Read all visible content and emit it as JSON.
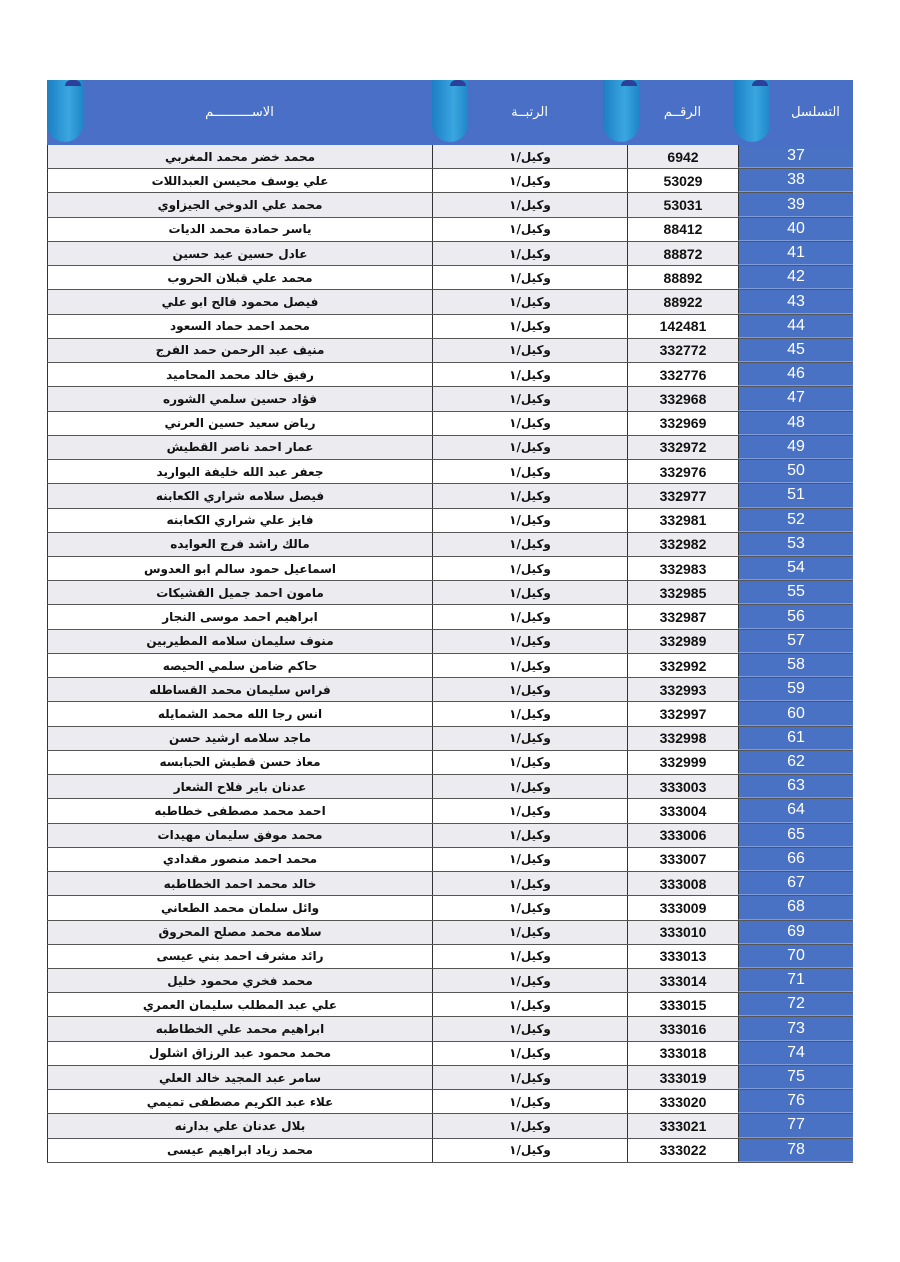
{
  "header": {
    "name": "الاســــــــــم",
    "rank": "الرتبــة",
    "number": "الرقــم",
    "serial": "التسلسل"
  },
  "colors": {
    "header_bg": "#4a6fc6",
    "serial_bg": "#4a72c4",
    "odd_row_bg": "#ececf0"
  },
  "rows": [
    {
      "serial": "37",
      "number": "6942",
      "rank": "وكيل/١",
      "name": "محمد خضر محمد المغربي"
    },
    {
      "serial": "38",
      "number": "53029",
      "rank": "وكيل/١",
      "name": "علي يوسف محيسن العبداللات"
    },
    {
      "serial": "39",
      "number": "53031",
      "rank": "وكيل/١",
      "name": "محمد علي الدوخي الجيزاوي"
    },
    {
      "serial": "40",
      "number": "88412",
      "rank": "وكيل/١",
      "name": "ياسر حمادة محمد الديات"
    },
    {
      "serial": "41",
      "number": "88872",
      "rank": "وكيل/١",
      "name": "عادل حسين عيد حسين"
    },
    {
      "serial": "42",
      "number": "88892",
      "rank": "وكيل/١",
      "name": "محمد علي  قبلان الحروب"
    },
    {
      "serial": "43",
      "number": "88922",
      "rank": "وكيل/١",
      "name": "فيصل محمود فالح ابو علي"
    },
    {
      "serial": "44",
      "number": "142481",
      "rank": "وكيل/١",
      "name": "محمد احمد حماد السعود"
    },
    {
      "serial": "45",
      "number": "332772",
      "rank": "وكيل/١",
      "name": "منيف عبد الرحمن حمد الفرج"
    },
    {
      "serial": "46",
      "number": "332776",
      "rank": "وكيل/١",
      "name": "رفيق خالد محمد المحاميد"
    },
    {
      "serial": "47",
      "number": "332968",
      "rank": "وكيل/١",
      "name": "فؤاد حسين سلمي الشوره"
    },
    {
      "serial": "48",
      "number": "332969",
      "rank": "وكيل/١",
      "name": "رياض سعيد حسين العرني"
    },
    {
      "serial": "49",
      "number": "332972",
      "rank": "وكيل/١",
      "name": "عمار احمد ناصر القطيش"
    },
    {
      "serial": "50",
      "number": "332976",
      "rank": "وكيل/١",
      "name": "جعفر عبد الله خليفة البواريد"
    },
    {
      "serial": "51",
      "number": "332977",
      "rank": "وكيل/١",
      "name": "فيصل سلامه شراري الكعابنه"
    },
    {
      "serial": "52",
      "number": "332981",
      "rank": "وكيل/١",
      "name": "فايز علي شراري الكعابنه"
    },
    {
      "serial": "53",
      "number": "332982",
      "rank": "وكيل/١",
      "name": "مالك راشد فرج العوايده"
    },
    {
      "serial": "54",
      "number": "332983",
      "rank": "وكيل/١",
      "name": "اسماعيل حمود سالم ابو العدوس"
    },
    {
      "serial": "55",
      "number": "332985",
      "rank": "وكيل/١",
      "name": "مامون  احمد جميل القشيكات"
    },
    {
      "serial": "56",
      "number": "332987",
      "rank": "وكيل/١",
      "name": "ابراهيم احمد موسى النجار"
    },
    {
      "serial": "57",
      "number": "332989",
      "rank": "وكيل/١",
      "name": "منوف سليمان سلامه المطيربين"
    },
    {
      "serial": "58",
      "number": "332992",
      "rank": "وكيل/١",
      "name": "حاكم ضامن سلمي الحيصه"
    },
    {
      "serial": "59",
      "number": "332993",
      "rank": "وكيل/١",
      "name": "فراس سليمان محمد القساطله"
    },
    {
      "serial": "60",
      "number": "332997",
      "rank": "وكيل/١",
      "name": "انس رجا الله محمد الشمايله"
    },
    {
      "serial": "61",
      "number": "332998",
      "rank": "وكيل/١",
      "name": "ماجد سلامه ارشيد حسن"
    },
    {
      "serial": "62",
      "number": "332999",
      "rank": "وكيل/١",
      "name": "معاذ حسن قطيش الحبابسه"
    },
    {
      "serial": "63",
      "number": "333003",
      "rank": "وكيل/١",
      "name": "عدنان باير فلاح الشعار"
    },
    {
      "serial": "64",
      "number": "333004",
      "rank": "وكيل/١",
      "name": "احمد محمد مصطفى خطاطبه"
    },
    {
      "serial": "65",
      "number": "333006",
      "rank": "وكيل/١",
      "name": "محمد موفق سليمان مهيدات"
    },
    {
      "serial": "66",
      "number": "333007",
      "rank": "وكيل/١",
      "name": "محمد احمد منصور مقدادي"
    },
    {
      "serial": "67",
      "number": "333008",
      "rank": "وكيل/١",
      "name": "خالد محمد احمد الخطاطبه"
    },
    {
      "serial": "68",
      "number": "333009",
      "rank": "وكيل/١",
      "name": "وائل سلمان محمد الطعاني"
    },
    {
      "serial": "69",
      "number": "333010",
      "rank": "وكيل/١",
      "name": "سلامه محمد مصلح المحروق"
    },
    {
      "serial": "70",
      "number": "333013",
      "rank": "وكيل/١",
      "name": "رائد مشرف احمد بني عيسى"
    },
    {
      "serial": "71",
      "number": "333014",
      "rank": "وكيل/١",
      "name": "محمد فخري محمود خليل"
    },
    {
      "serial": "72",
      "number": "333015",
      "rank": "وكيل/١",
      "name": "علي عبد المطلب سليمان العمري"
    },
    {
      "serial": "73",
      "number": "333016",
      "rank": "وكيل/١",
      "name": "ابراهيم محمد علي الخطاطبه"
    },
    {
      "serial": "74",
      "number": "333018",
      "rank": "وكيل/١",
      "name": "محمد محمود عبد الرزاق اشلول"
    },
    {
      "serial": "75",
      "number": "333019",
      "rank": "وكيل/١",
      "name": "سامر  عبد المجيد خالد العلي"
    },
    {
      "serial": "76",
      "number": "333020",
      "rank": "وكيل/١",
      "name": "علاء عبد الكريم مصطفى تميمي"
    },
    {
      "serial": "77",
      "number": "333021",
      "rank": "وكيل/١",
      "name": "بلال عدنان علي بدارنه"
    },
    {
      "serial": "78",
      "number": "333022",
      "rank": "وكيل/١",
      "name": "محمد زياد ابراهيم عيسى"
    }
  ]
}
